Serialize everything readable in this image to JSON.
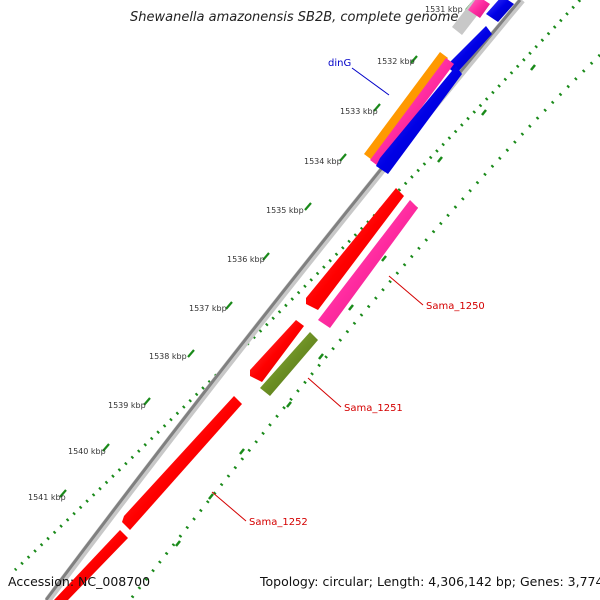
{
  "title": "Shewanella amazonensis SB2B, complete genome",
  "footer": {
    "accession_label": "Accession:",
    "accession": "NC_008700",
    "topology_label": "Topology:",
    "topology": "circular",
    "length_label": "Length:",
    "length": "4,306,142 bp",
    "genes_label": "Genes:",
    "genes": "3,774"
  },
  "ticks": [
    "1531 kbp",
    "1532 kbp",
    "1533 kbp",
    "1534 kbp",
    "1535 kbp",
    "1536 kbp",
    "1537 kbp",
    "1538 kbp",
    "1539 kbp",
    "1540 kbp",
    "1541 kbp"
  ],
  "gene_labels": [
    "dinG",
    "Sama_1250",
    "Sama_1251",
    "Sama_1252"
  ],
  "colors": {
    "red": "#ff0000",
    "pink": "#ff2ba0",
    "blue": "#0000e6",
    "orange": "#ff9900",
    "olive": "#6b8e23",
    "gray": "#c8c8c8",
    "backbone": "#808080",
    "dotted": "#1a8a1a",
    "gene_label_red": "#d40000",
    "gene_label_blue": "#0000c8"
  }
}
